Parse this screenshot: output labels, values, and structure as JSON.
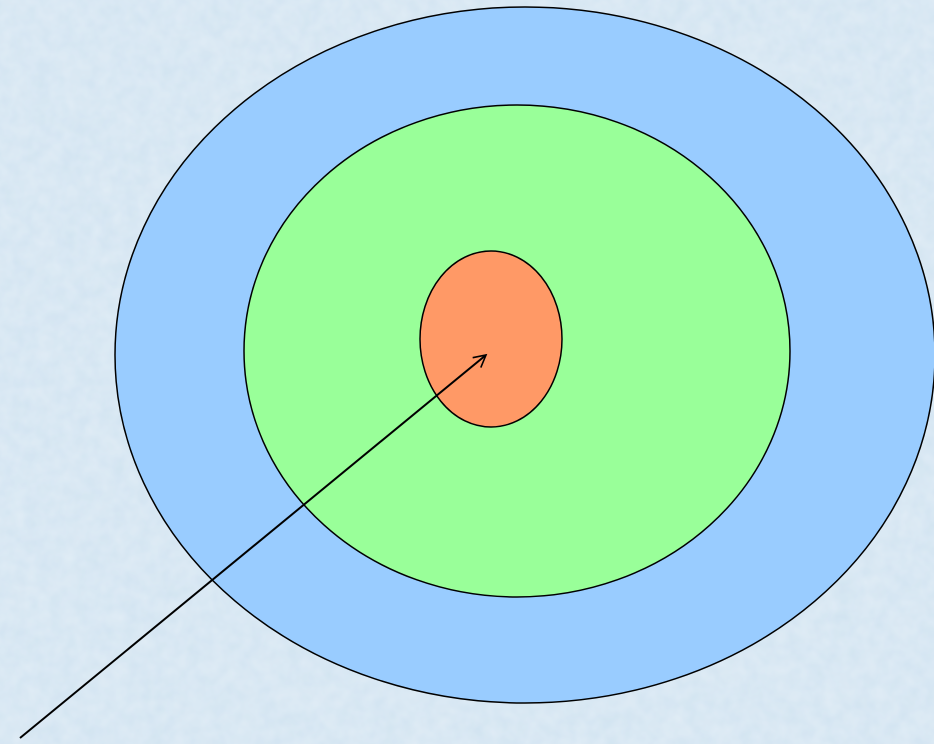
{
  "colors": {
    "background": "#d2e4f1",
    "background_speckle_light": "#e3eef8",
    "background_speckle_dark": "#bcd3e6",
    "outer_ring": "#99ccff",
    "middle_ring": "#99ff99",
    "center": "#ff9966",
    "stroke": "#000000"
  },
  "diagram": {
    "rings": [
      {
        "id": "outer",
        "fill_key": "outer_ring"
      },
      {
        "id": "middle",
        "fill_key": "middle_ring"
      },
      {
        "id": "center",
        "fill_key": "center"
      }
    ],
    "arrow": {
      "target": "center"
    }
  }
}
